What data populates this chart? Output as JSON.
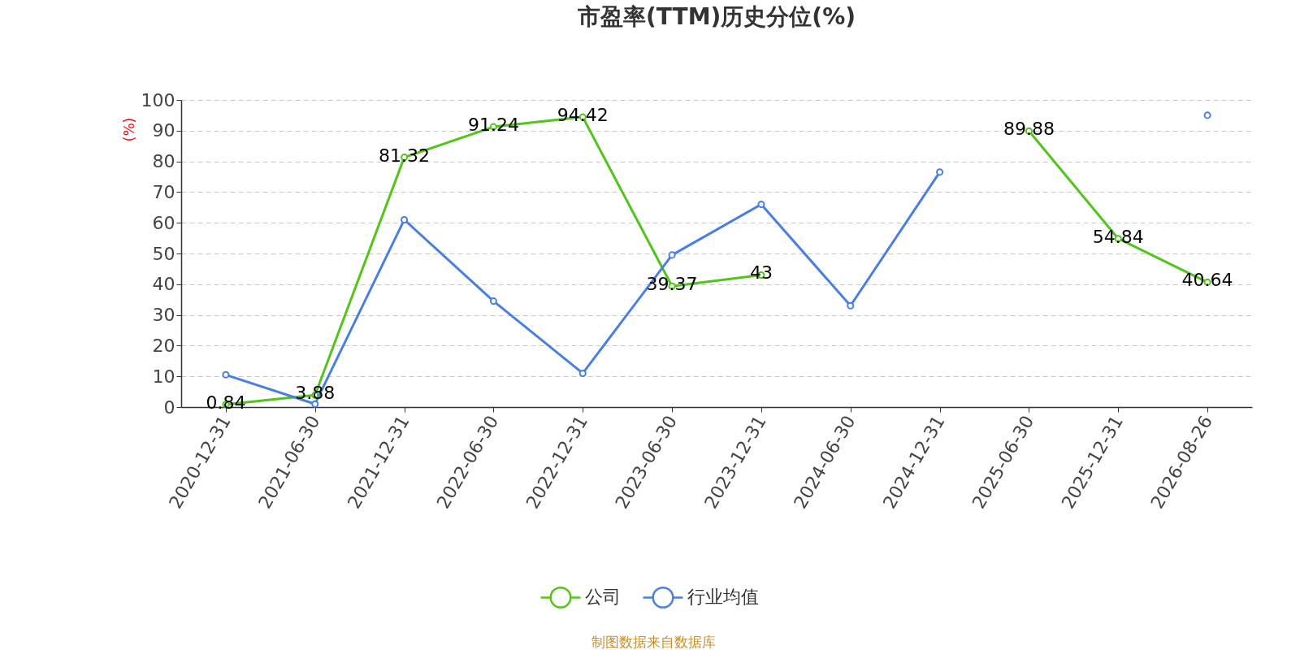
{
  "chart_data": {
    "type": "line",
    "title": "市盈率(TTM)历史分位(%)",
    "ylabel": "(%)",
    "categories": [
      "2020-12-31",
      "2021-06-30",
      "2021-12-31",
      "2022-06-30",
      "2022-12-31",
      "2023-06-30",
      "2023-12-31",
      "2024-06-30",
      "2024-12-31",
      "2025-06-30",
      "2025-12-31",
      "2026-08-26"
    ],
    "series": [
      {
        "name": "公司",
        "color": "#52c41a",
        "values": [
          0.84,
          3.88,
          81.32,
          91.24,
          94.42,
          39.37,
          43,
          null,
          null,
          89.88,
          54.84,
          40.64
        ],
        "value_labels": [
          "0.84",
          "3.88",
          "81.32",
          "91.24",
          "94.42",
          "39.37",
          "43",
          null,
          null,
          "89.88",
          "54.84",
          "40.64"
        ]
      },
      {
        "name": "行业均值",
        "color": "#4a7fe2",
        "values": [
          10.5,
          1,
          61,
          34.5,
          11,
          49.5,
          66,
          33,
          76.5,
          null,
          null,
          95
        ]
      }
    ],
    "ylim": [
      0,
      100
    ],
    "yticks": [
      0,
      10,
      20,
      30,
      40,
      50,
      60,
      70,
      80,
      90,
      100
    ],
    "grid": "y",
    "legend": "bottom",
    "marker": "circle",
    "line_style": "solid",
    "annotations": [
      "制图数据来自数据库"
    ]
  }
}
